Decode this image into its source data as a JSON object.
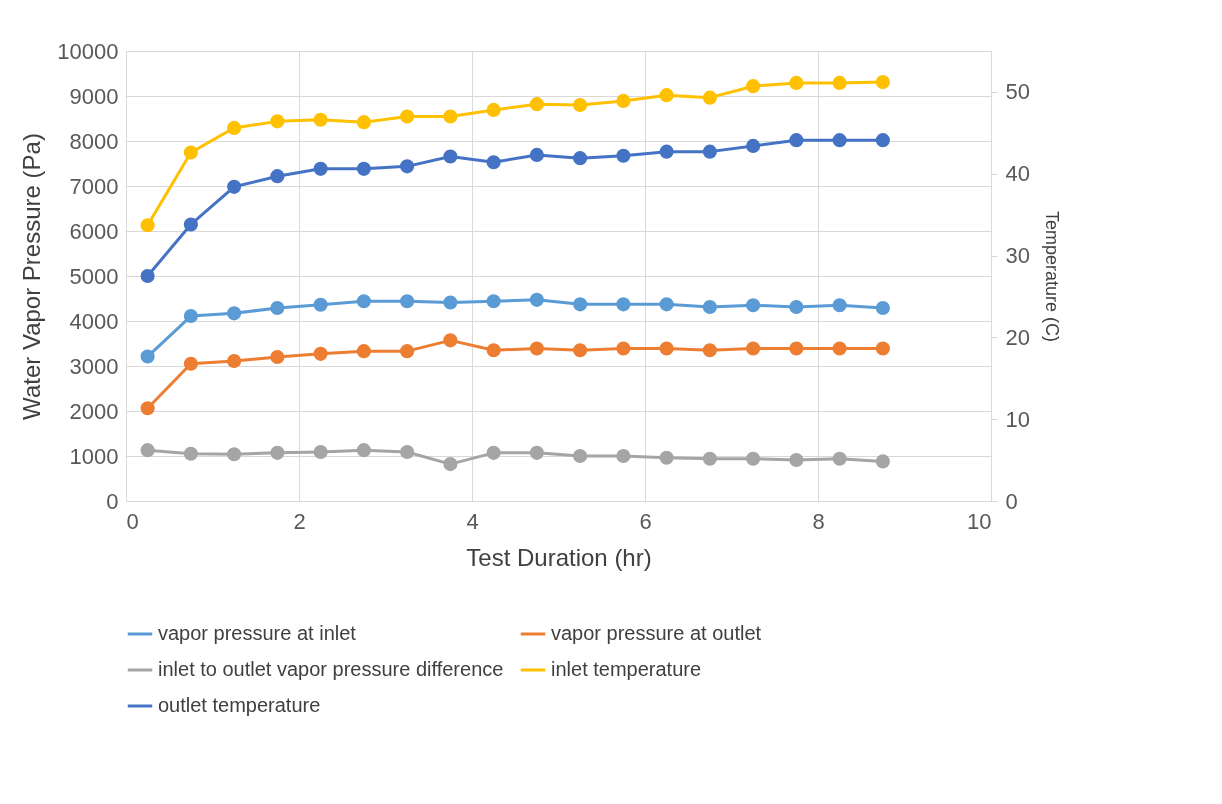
{
  "chart_data": {
    "type": "line",
    "xlabel": "Test Duration (hr)",
    "ylabel": "Water Vapor Pressure (Pa)",
    "y2label": "Temperature (C)",
    "x": [
      0.25,
      0.75,
      1.25,
      1.75,
      2.25,
      2.75,
      3.25,
      3.75,
      4.25,
      4.75,
      5.25,
      5.75,
      6.25,
      6.75,
      7.25,
      7.75,
      8.25,
      8.75
    ],
    "xlim": [
      0,
      10
    ],
    "xticks": [
      0,
      2,
      4,
      6,
      8,
      10
    ],
    "ylim": [
      0,
      10000
    ],
    "yticks": [
      0,
      1000,
      2000,
      3000,
      4000,
      5000,
      6000,
      7000,
      8000,
      9000,
      10000
    ],
    "y2lim": [
      0,
      55
    ],
    "y2ticks": [
      0,
      10,
      20,
      30,
      40,
      50
    ],
    "grid": true,
    "legend": "bottom",
    "marker": "circle",
    "line_style": "solid",
    "series": [
      {
        "name": "vapor pressure at inlet",
        "color": "#5b9bd5",
        "values": [
          3210,
          4110,
          4170,
          4290,
          4360,
          4440,
          4440,
          4410,
          4440,
          4470,
          4370,
          4370,
          4370,
          4310,
          4350,
          4310,
          4350,
          4290
        ]
      },
      {
        "name": "vapor pressure at outlet",
        "color": "#ed7d31",
        "values": [
          2060,
          3050,
          3110,
          3200,
          3270,
          3330,
          3330,
          3570,
          3350,
          3390,
          3350,
          3390,
          3390,
          3350,
          3390,
          3390,
          3390,
          3390
        ]
      },
      {
        "name": "inlet to outlet vapor pressure difference",
        "color": "#a5a5a5",
        "values": [
          1130,
          1050,
          1040,
          1070,
          1090,
          1130,
          1090,
          820,
          1070,
          1070,
          1000,
          1000,
          960,
          940,
          940,
          910,
          940,
          880
        ]
      },
      {
        "name": "inlet temperature",
        "color": "#ffc000",
        "axis": "y2",
        "values": [
          33.7,
          42.6,
          45.6,
          46.4,
          46.6,
          46.3,
          47.0,
          47.0,
          47.8,
          48.5,
          48.4,
          48.9,
          49.6,
          49.3,
          50.7,
          51.1,
          51.1,
          51.2
        ]
      },
      {
        "name": "outlet temperature",
        "color": "#4472c4",
        "axis": "y2",
        "values": [
          27.5,
          33.8,
          38.4,
          39.7,
          40.6,
          40.6,
          40.9,
          42.1,
          41.4,
          42.3,
          41.9,
          42.2,
          42.7,
          42.7,
          43.4,
          44.1,
          44.1,
          44.1
        ]
      }
    ]
  }
}
